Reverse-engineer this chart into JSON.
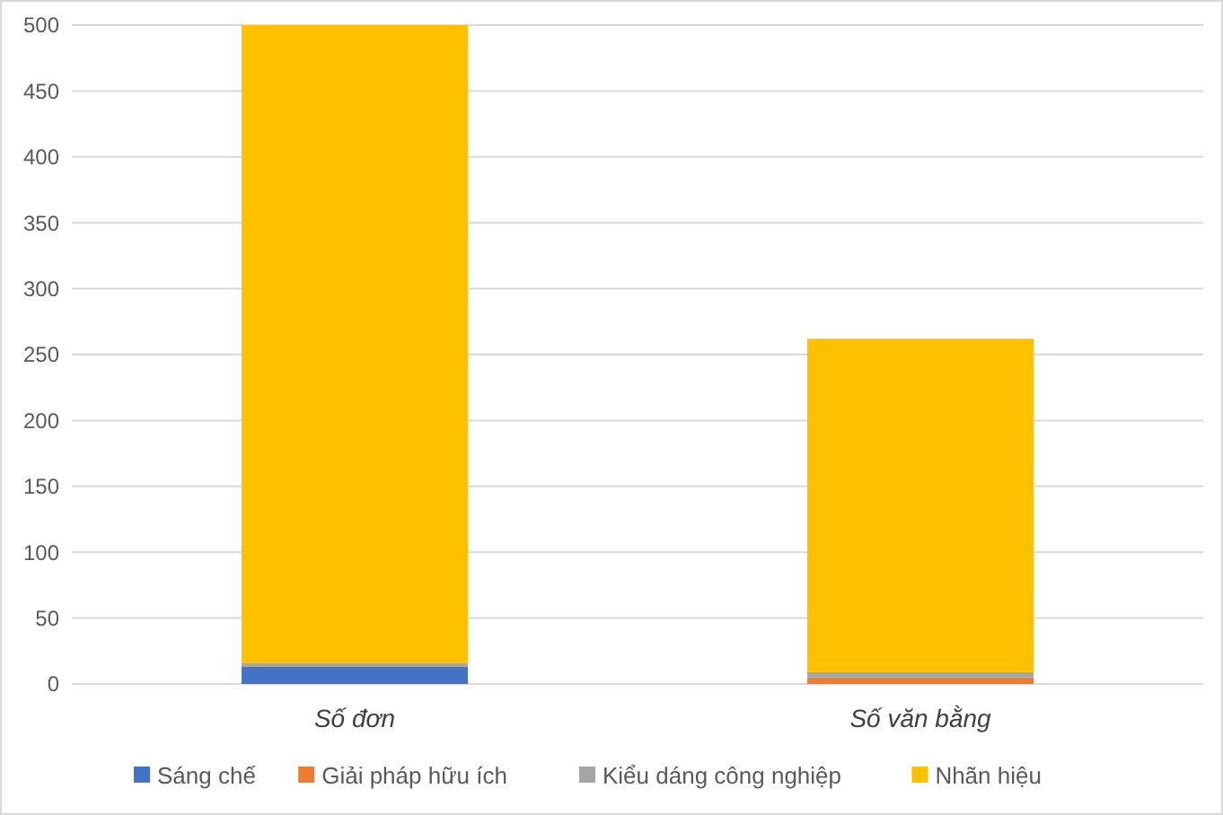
{
  "chart_data": {
    "type": "bar",
    "stacked": true,
    "categories": [
      "Số đơn",
      "Số văn bằng"
    ],
    "series": [
      {
        "name": "Sáng chế",
        "color": "#4472c4",
        "values": [
          13,
          0
        ]
      },
      {
        "name": "Giải pháp hữu ích",
        "color": "#ed7d31",
        "values": [
          0,
          5
        ]
      },
      {
        "name": "Kiểu dáng công nghiệp",
        "color": "#a5a5a5",
        "values": [
          3,
          4
        ]
      },
      {
        "name": "Nhãn hiệu",
        "color": "#ffc000",
        "values": [
          484,
          253
        ]
      }
    ],
    "ylim": [
      0,
      500
    ],
    "yticks": [
      0,
      50,
      100,
      150,
      200,
      250,
      300,
      350,
      400,
      450,
      500
    ],
    "grid": "y",
    "legend": "bottom"
  }
}
